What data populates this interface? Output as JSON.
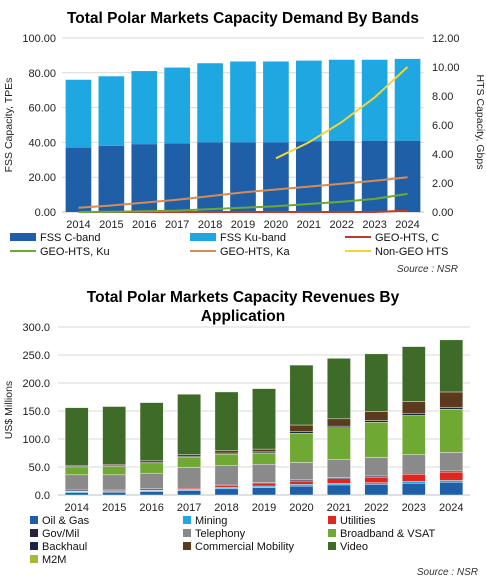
{
  "chart_data": [
    {
      "type": "bar",
      "title": "Total Polar Markets Capacity Demand By Bands",
      "ylabel": "FSS Capacity, TPEs",
      "y2label": "HTS Capacity, Gbps",
      "ylim": [
        0,
        100
      ],
      "y2lim": [
        0,
        12
      ],
      "yticks": [
        "0.00",
        "20.00",
        "40.00",
        "60.00",
        "80.00",
        "100.00"
      ],
      "y2ticks": [
        "0.00",
        "2.00",
        "4.00",
        "6.00",
        "8.00",
        "10.00",
        "12.00"
      ],
      "categories": [
        "2014",
        "2015",
        "2016",
        "2017",
        "2018",
        "2019",
        "2020",
        "2021",
        "2022",
        "2023",
        "2024"
      ],
      "stacked": true,
      "series": [
        {
          "name": "FSS C-band",
          "kind": "bar",
          "axis": "left",
          "color": "#1f5fa8",
          "values": [
            37,
            38,
            39,
            39.5,
            40,
            40,
            40,
            40.5,
            41,
            41,
            41
          ]
        },
        {
          "name": "FSS Ku-band",
          "kind": "bar",
          "axis": "left",
          "color": "#1ea7e1",
          "values": [
            39,
            40,
            42,
            43.5,
            45.5,
            46.5,
            46.5,
            46.5,
            46.5,
            46.5,
            47
          ]
        },
        {
          "name": "GEO-HTS, C",
          "kind": "line",
          "axis": "right",
          "color": "#c0392b",
          "values": [
            0,
            0,
            0,
            0,
            0,
            0,
            0,
            0,
            0,
            0,
            0.1
          ]
        },
        {
          "name": "GEO-HTS, Ku",
          "kind": "line",
          "axis": "right",
          "color": "#6fa832",
          "values": [
            0,
            0.02,
            0.05,
            0.1,
            0.2,
            0.3,
            0.4,
            0.55,
            0.7,
            0.9,
            1.25
          ]
        },
        {
          "name": "GEO-HTS, Ka",
          "kind": "line",
          "axis": "right",
          "color": "#d98b55",
          "values": [
            0.3,
            0.45,
            0.65,
            0.85,
            1.1,
            1.35,
            1.55,
            1.75,
            1.95,
            2.15,
            2.4
          ]
        },
        {
          "name": "Non-GEO HTS",
          "kind": "line",
          "axis": "right",
          "color": "#f2d43a",
          "values": [
            null,
            null,
            null,
            null,
            null,
            null,
            3.7,
            4.8,
            6.2,
            7.9,
            10.0
          ]
        }
      ],
      "legend": [
        "FSS C-band",
        "FSS Ku-band",
        "GEO-HTS, C",
        "GEO-HTS, Ku",
        "GEO-HTS, Ka",
        "Non-GEO HTS"
      ],
      "legend_position": "bottom",
      "source": "Source : NSR"
    },
    {
      "type": "bar",
      "title": "Total Polar Markets Capacity Revenues By Application",
      "title_lines": [
        "Total Polar Markets Capacity Revenues By",
        "Application"
      ],
      "ylabel": "US$ Millions",
      "ylim": [
        0,
        300
      ],
      "yticks": [
        "0.0",
        "50.0",
        "100.0",
        "150.0",
        "200.0",
        "250.0",
        "300.0"
      ],
      "categories": [
        "2014",
        "2015",
        "2016",
        "2017",
        "2018",
        "2019",
        "2020",
        "2021",
        "2022",
        "2023",
        "2024"
      ],
      "stacked": true,
      "series": [
        {
          "name": "Oil & Gas",
          "color": "#1f5fa8",
          "values": [
            4,
            5,
            6,
            8,
            11,
            13,
            16,
            18,
            19,
            21,
            23
          ]
        },
        {
          "name": "Mining",
          "color": "#1ea7e1",
          "values": [
            2,
            2,
            2,
            2,
            3,
            3,
            3,
            3,
            3,
            3,
            3
          ]
        },
        {
          "name": "Utilities",
          "color": "#e0261f",
          "values": [
            1,
            1,
            1,
            2,
            3,
            4,
            6,
            8,
            10,
            13,
            15
          ]
        },
        {
          "name": "Gov/Mil",
          "color": "#2a1f3d",
          "values": [
            2,
            2,
            2,
            2,
            2,
            2,
            2,
            2,
            2,
            2,
            2
          ]
        },
        {
          "name": "Telephony",
          "color": "#8a8a8a",
          "values": [
            27,
            26,
            28,
            35,
            34,
            33,
            31,
            32,
            33,
            33,
            33
          ]
        },
        {
          "name": "Broadband & VSAT",
          "color": "#6fa832",
          "values": [
            13,
            15,
            17,
            18,
            20,
            20,
            52,
            57,
            63,
            70,
            77
          ]
        },
        {
          "name": "Backhaul",
          "color": "#1a2740",
          "values": [
            2,
            2,
            2,
            2,
            2,
            2,
            3,
            3,
            3,
            3,
            3
          ]
        },
        {
          "name": "Commercial Mobility",
          "color": "#5b3a1e",
          "values": [
            2,
            2,
            3,
            3,
            4,
            5,
            12,
            13,
            16,
            22,
            28
          ]
        },
        {
          "name": "Video",
          "color": "#3f6b28",
          "values": [
            103,
            103,
            104,
            108,
            105,
            108,
            107,
            108,
            103,
            98,
            93
          ]
        },
        {
          "name": "M2M",
          "color": "#a5b83a",
          "values": [
            0,
            0,
            0,
            0,
            0,
            0,
            0,
            0,
            0,
            0,
            0
          ]
        }
      ],
      "legend": [
        "Oil & Gas",
        "Mining",
        "Utilities",
        "Gov/Mil",
        "Telephony",
        "Broadband & VSAT",
        "Backhaul",
        "Commercial Mobility",
        "Video",
        "M2M"
      ],
      "legend_position": "bottom",
      "source": "Source : NSR"
    }
  ]
}
